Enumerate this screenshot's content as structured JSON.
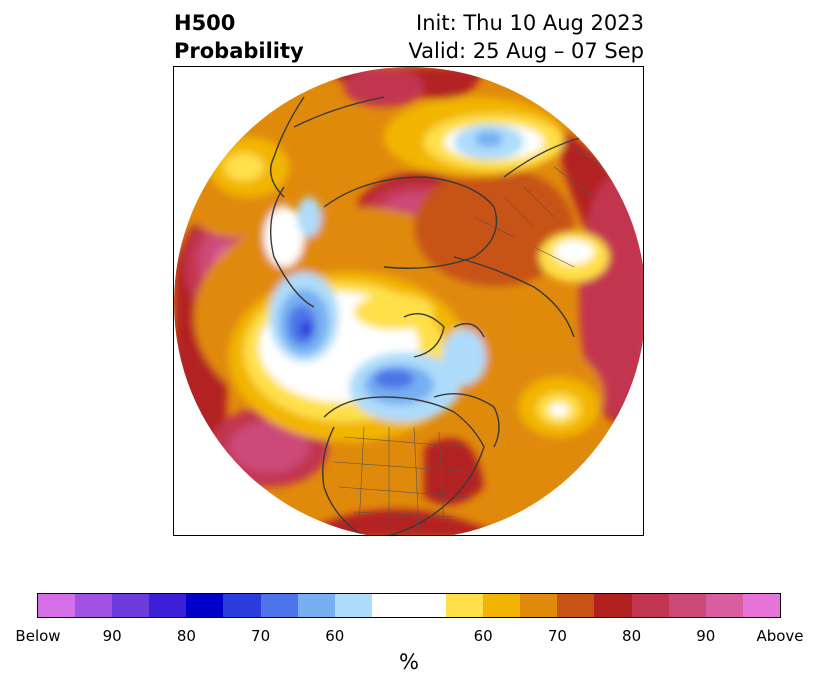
{
  "title": {
    "variable": "H500",
    "subtitle": "Probability",
    "init": "Init: Thu 10 Aug 2023",
    "valid": "Valid: 25 Aug – 07 Sep"
  },
  "colorbar": {
    "unit": "%",
    "colors": [
      "#d46fe8",
      "#9f52e2",
      "#6c3ddc",
      "#3c1fd6",
      "#0000cc",
      "#2a3cdc",
      "#4d74e8",
      "#76aff2",
      "#aedcfa",
      "#ffffff",
      "#ffe04a",
      "#f2b503",
      "#e08a0c",
      "#c75317",
      "#b32020",
      "#c23550",
      "#cc4a78",
      "#d95ea0",
      "#e673d8"
    ],
    "labels": [
      "Below",
      "90",
      "80",
      "70",
      "60",
      "60",
      "70",
      "80",
      "90",
      "Above"
    ]
  }
}
